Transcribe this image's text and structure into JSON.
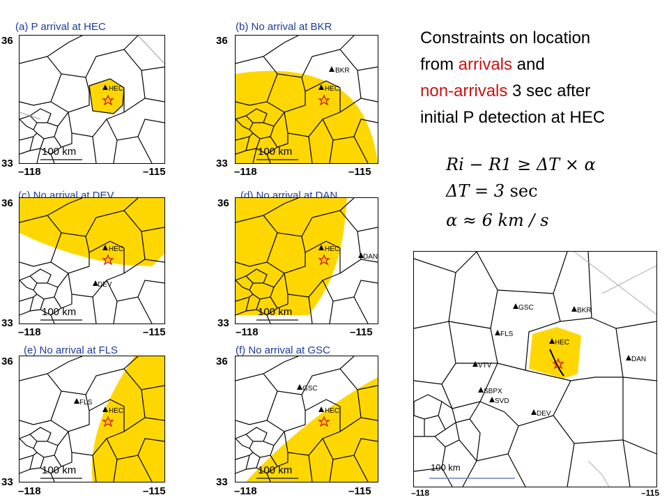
{
  "heading": {
    "line1": "Constraints on location",
    "line2_a": "from ",
    "line2_b": "arrivals",
    "line2_c": " and",
    "line3_a": "non-arrivals",
    "line3_b": " 3 sec after",
    "line4": "initial P detection at HEC"
  },
  "formulas": {
    "f1": "Ri − R1 ≥ ΔT × α",
    "f2_a": "ΔT = 3",
    "f2_b": " sec",
    "f3": "α ≈ 6 km / s"
  },
  "panels": [
    {
      "title": "(a) P arrival at HEC",
      "y_top": "36",
      "y_bottom": "33",
      "x_left": "–118",
      "x_right": "–115",
      "scale": "100 km",
      "stations": [
        "HEC"
      ]
    },
    {
      "title": "(b) No arrival at BKR",
      "y_top": "36",
      "y_bottom": "33",
      "x_left": "–118",
      "x_right": "–115",
      "scale": "100 km",
      "stations": [
        "BKR",
        "HEC"
      ]
    },
    {
      "title": "(c) No arrival at DEV",
      "y_top": "36",
      "y_bottom": "33",
      "x_left": "–118",
      "x_right": "–115",
      "scale": "100 km",
      "stations": [
        "HEC",
        "DEV"
      ]
    },
    {
      "title": "(d) No arrival at DAN",
      "y_top": "36",
      "y_bottom": "33",
      "x_left": "–118",
      "x_right": "–115",
      "scale": "100 km",
      "stations": [
        "HEC",
        "DAN"
      ]
    },
    {
      "title": "(e) No arrival at FLS",
      "y_top": "36",
      "y_bottom": "33",
      "x_left": "–118",
      "x_right": "–115",
      "scale": "100 km",
      "stations": [
        "FLS",
        "HEC"
      ]
    },
    {
      "title": "(f) No arrival at GSC",
      "y_top": "36",
      "y_bottom": "33",
      "x_left": "–118",
      "x_right": "–115",
      "scale": "100 km",
      "stations": [
        "GSC",
        "HEC"
      ]
    }
  ],
  "big_map": {
    "x_left": "–118",
    "x_right": "–115",
    "scale": "100 km",
    "stations": [
      "GSC",
      "BKR",
      "FLS",
      "HEC",
      "VTV",
      "DAN",
      "SBPX",
      "SVD",
      "DEV"
    ]
  },
  "colors": {
    "fill": "#ffd700",
    "station": "#000000",
    "epicenter": "#cc1111",
    "title": "#1a3aa0"
  }
}
